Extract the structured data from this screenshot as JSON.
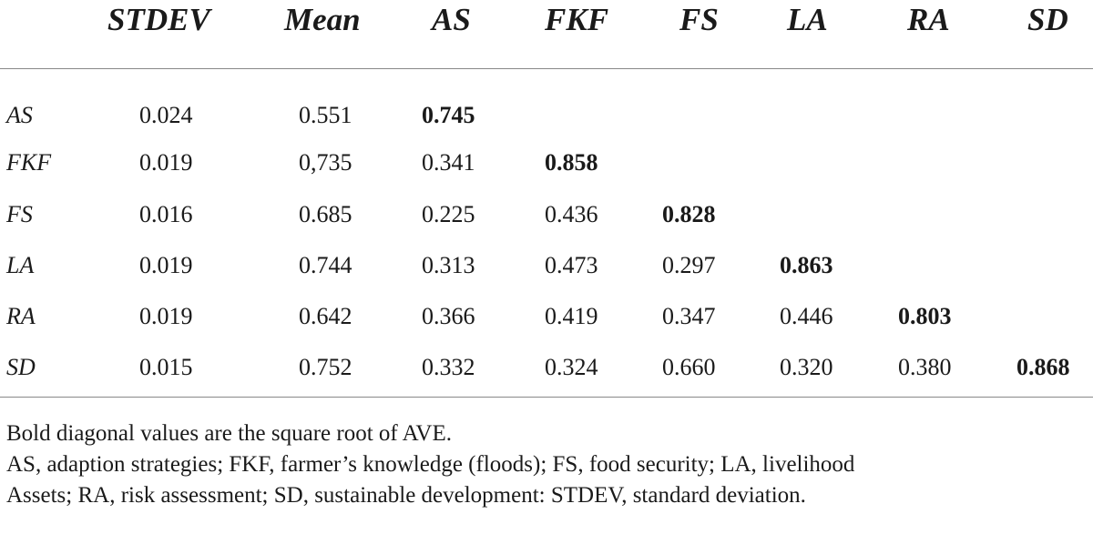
{
  "table": {
    "columns": [
      "STDEV",
      "Mean",
      "AS",
      "FKF",
      "FS",
      "LA",
      "RA",
      "SD"
    ],
    "rows": [
      {
        "label": "AS",
        "values": [
          "0.024",
          "0.551",
          "0.745",
          "",
          "",
          "",
          "",
          ""
        ],
        "bold_index": 2
      },
      {
        "label": "FKF",
        "values": [
          "0.019",
          "0,735",
          "0.341",
          "0.858",
          "",
          "",
          "",
          ""
        ],
        "bold_index": 3
      },
      {
        "label": "FS",
        "values": [
          "0.016",
          "0.685",
          "0.225",
          "0.436",
          "0.828",
          "",
          "",
          ""
        ],
        "bold_index": 4
      },
      {
        "label": "LA",
        "values": [
          "0.019",
          "0.744",
          "0.313",
          "0.473",
          "0.297",
          "0.863",
          "",
          ""
        ],
        "bold_index": 5
      },
      {
        "label": "RA",
        "values": [
          "0.019",
          "0.642",
          "0.366",
          "0.419",
          "0.347",
          "0.446",
          "0.803",
          ""
        ],
        "bold_index": 6
      },
      {
        "label": "SD",
        "values": [
          "0.015",
          "0.752",
          "0.332",
          "0.324",
          "0.660",
          "0.320",
          "0.380",
          "0.868"
        ],
        "bold_index": 7
      }
    ]
  },
  "notes": {
    "line1": "Bold diagonal values are the square root of AVE.",
    "line2": "AS, adaption strategies; FKF, farmer’s knowledge (floods); FS, food security; LA, livelihood",
    "line3": "Assets; RA, risk assessment; SD, sustainable development: STDEV, standard deviation."
  }
}
